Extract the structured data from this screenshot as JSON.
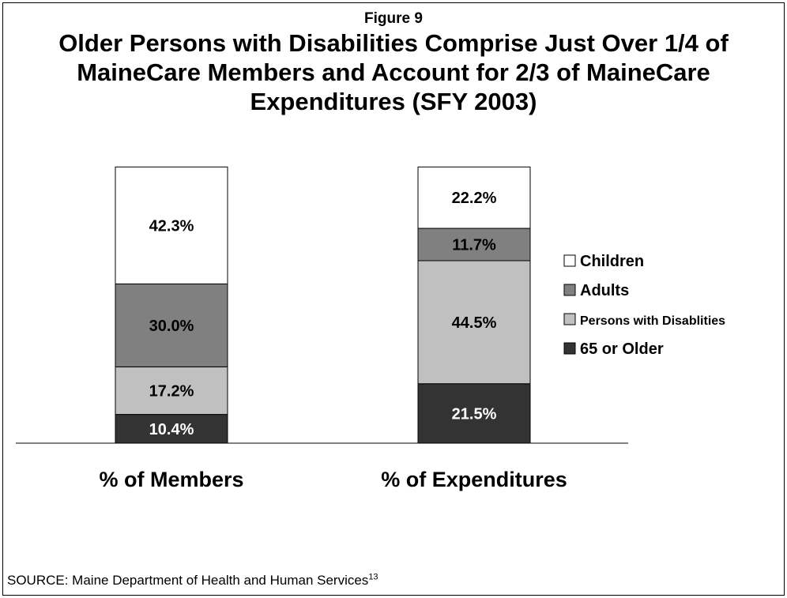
{
  "figure_label": "Figure 9",
  "title_lines": [
    "Older Persons with Disabilities Comprise Just Over 1/4 of",
    "MaineCare Members and Account for 2/3 of MaineCare",
    "Expenditures (SFY 2003)"
  ],
  "source": {
    "text": "SOURCE: Maine Department of Health and Human Services",
    "footnote": "13"
  },
  "colors": {
    "children": "#ffffff",
    "adults": "#808080",
    "disabilities": "#c0c0c0",
    "older": "#333333"
  },
  "chart_data": {
    "type": "bar",
    "stacked": true,
    "categories": [
      "% of Members",
      "% of Expenditures"
    ],
    "series": [
      {
        "name": "65 or Older",
        "key": "older",
        "values": [
          10.4,
          21.5
        ],
        "labels": [
          "10.4%",
          "21.5%"
        ]
      },
      {
        "name": "Persons with Disablities",
        "key": "disabilities",
        "values": [
          17.2,
          44.5
        ],
        "labels": [
          "17.2%",
          "44.5%"
        ]
      },
      {
        "name": "Adults",
        "key": "adults",
        "values": [
          30.0,
          11.7
        ],
        "labels": [
          "30.0%",
          "11.7%"
        ]
      },
      {
        "name": "Children",
        "key": "children",
        "values": [
          42.3,
          22.2
        ],
        "labels": [
          "42.3%",
          "22.2%"
        ]
      }
    ],
    "legend_order": [
      "Children",
      "Adults",
      "Persons with Disablities",
      "65 or Older"
    ],
    "ylim": [
      0,
      100
    ],
    "grid": false,
    "legend_position": "right"
  }
}
